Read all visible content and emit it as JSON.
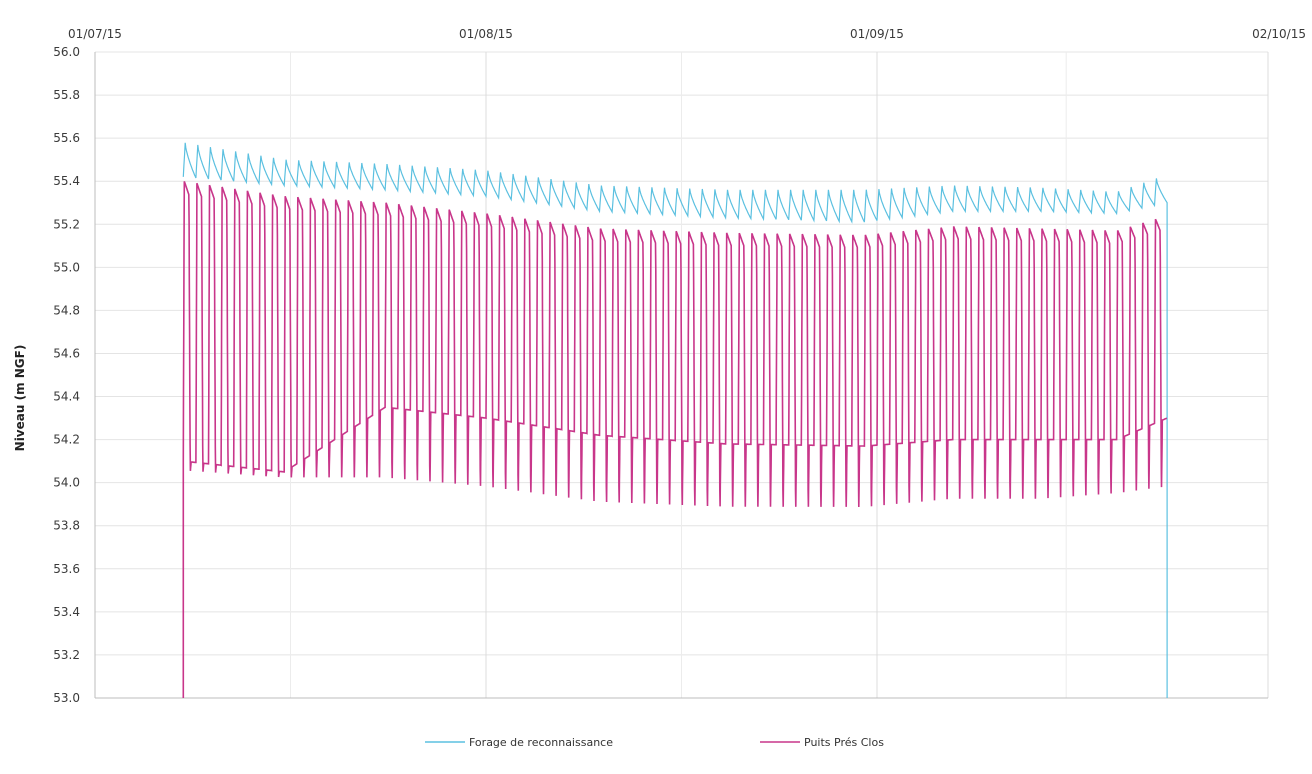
{
  "chart_data": {
    "type": "line",
    "title": "",
    "xlabel": "",
    "ylabel": "Niveau  (m NGF)",
    "x_range": [
      "2015-07-01",
      "2015-10-02"
    ],
    "x_tick_labels": [
      "01/07/15",
      "01/08/15",
      "01/09/15",
      "02/10/15"
    ],
    "ylim": [
      53.0,
      56.0
    ],
    "y_tick_labels": [
      "53.0",
      "53.2",
      "53.4",
      "53.6",
      "53.8",
      "54.0",
      "54.2",
      "54.4",
      "54.6",
      "54.8",
      "55.0",
      "55.2",
      "55.4",
      "55.6",
      "55.8",
      "56.0"
    ],
    "grid": true,
    "legend_position": "bottom",
    "series": [
      {
        "name": "Forage de reconnaissance",
        "color": "#5bc0e0",
        "description_pattern": "daily oscillation",
        "start_date": "2015-07-08",
        "end_date": "2015-09-24",
        "daily_amplitude": 0.1,
        "envelope_dates": [
          "2015-07-08",
          "2015-07-16",
          "2015-07-24",
          "2015-08-01",
          "2015-08-10",
          "2015-08-20",
          "2015-08-31",
          "2015-09-07",
          "2015-09-14",
          "2015-09-20",
          "2015-09-24"
        ],
        "envelope_max": [
          55.58,
          55.5,
          55.48,
          55.45,
          55.38,
          55.36,
          55.36,
          55.38,
          55.37,
          55.35,
          55.43
        ],
        "envelope_min": [
          55.42,
          55.38,
          55.36,
          55.33,
          55.26,
          55.23,
          55.21,
          55.26,
          55.26,
          55.25,
          55.3
        ],
        "final_drop_to": 53.0
      },
      {
        "name": "Puits Prés Clos",
        "color": "#c8368a",
        "start_date": "2015-07-08",
        "start_value": 53.0,
        "end_date": "2015-09-24",
        "envelope_dates": [
          "2015-07-08",
          "2015-07-16",
          "2015-07-24",
          "2015-08-01",
          "2015-08-10",
          "2015-08-20",
          "2015-08-31",
          "2015-09-07",
          "2015-09-14",
          "2015-09-20",
          "2015-09-24"
        ],
        "envelope_max": [
          55.4,
          55.33,
          55.3,
          55.25,
          55.18,
          55.16,
          55.15,
          55.19,
          55.18,
          55.17,
          55.24
        ],
        "envelope_min": [
          54.05,
          54.02,
          53.97,
          53.93,
          53.86,
          53.84,
          53.84,
          53.88,
          53.88,
          53.91,
          53.93
        ],
        "plateau_min": [
          54.1,
          54.05,
          54.35,
          54.3,
          54.22,
          54.18,
          54.17,
          54.2,
          54.2,
          54.2,
          54.3
        ]
      }
    ]
  }
}
